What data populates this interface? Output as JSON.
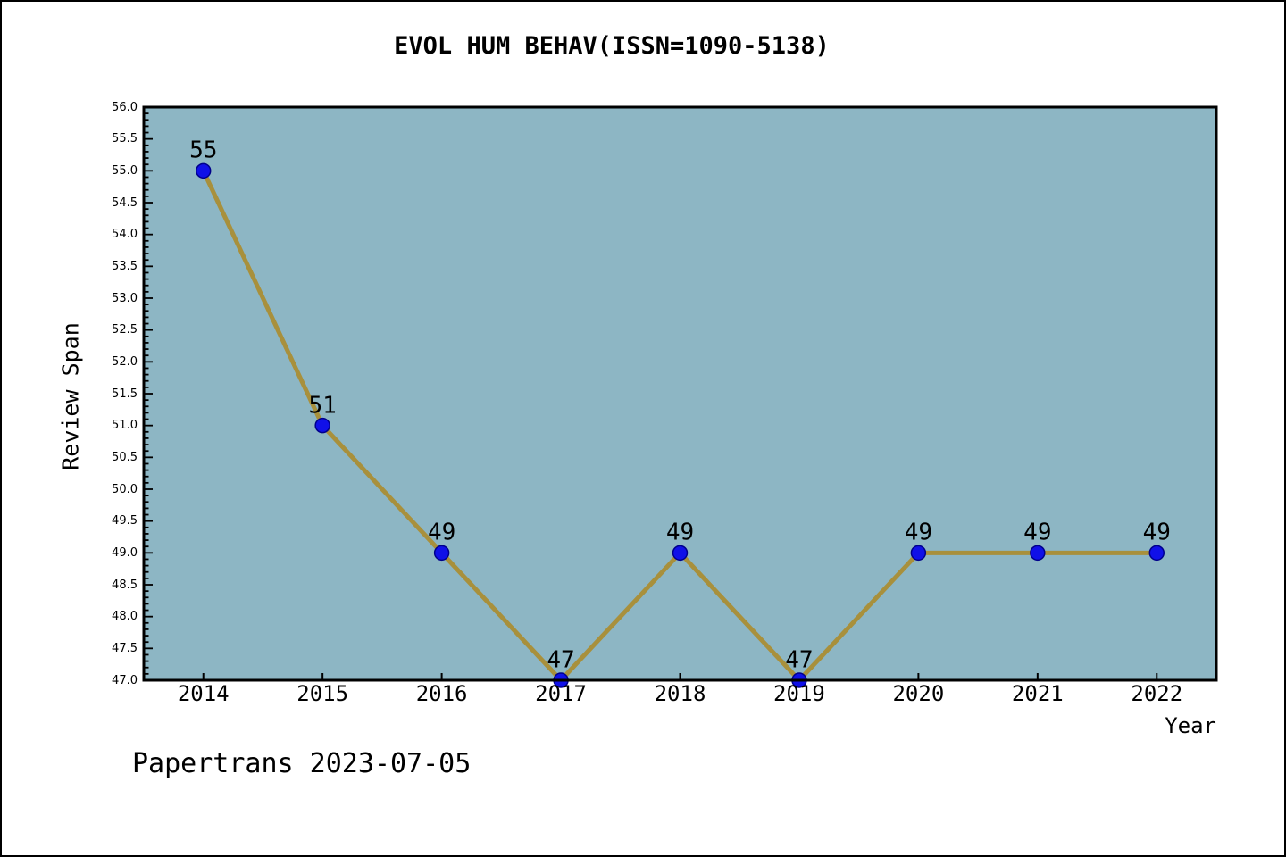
{
  "footer": "Papertrans 2023-07-05",
  "chart_data": {
    "type": "line",
    "title": "EVOL HUM BEHAV(ISSN=1090-5138)",
    "xlabel": "Year",
    "ylabel": "Review Span",
    "x": [
      2014,
      2015,
      2016,
      2017,
      2018,
      2019,
      2020,
      2021,
      2022
    ],
    "series": [
      {
        "name": "Review Span",
        "values": [
          55,
          51,
          49,
          47,
          49,
          47,
          49,
          49,
          49
        ]
      }
    ],
    "data_labels": [
      "55",
      "51",
      "49",
      "47",
      "49",
      "47",
      "49",
      "49",
      "49"
    ],
    "xlim": [
      2013.5,
      2022.5
    ],
    "ylim": [
      47.0,
      56.0
    ],
    "xticks": {
      "values": [
        2014,
        2015,
        2016,
        2017,
        2018,
        2019,
        2020,
        2021,
        2022
      ],
      "labels": [
        "2014",
        "2015",
        "2016",
        "2017",
        "2018",
        "2019",
        "2020",
        "2021",
        "2022"
      ]
    },
    "yticks": {
      "values": [
        47.0,
        47.5,
        48.0,
        48.5,
        49.0,
        49.5,
        50.0,
        50.5,
        51.0,
        51.5,
        52.0,
        52.5,
        53.0,
        53.5,
        54.0,
        54.5,
        55.0,
        55.5,
        56.0
      ],
      "labels": [
        "47.0",
        "47.5",
        "48.0",
        "48.5",
        "49.0",
        "49.5",
        "50.0",
        "50.5",
        "51.0",
        "51.5",
        "52.0",
        "52.5",
        "53.0",
        "53.5",
        "54.0",
        "54.5",
        "55.0",
        "55.5",
        "56.0"
      ],
      "minor_step": 0.1
    },
    "grid": false,
    "legend": "none",
    "colors": {
      "plot_bg": "#8db6c4",
      "line": "#a8903c",
      "marker_fill": "#1010e8",
      "marker_edge": "#00008b",
      "frame": "#000000",
      "text": "#000000"
    }
  }
}
